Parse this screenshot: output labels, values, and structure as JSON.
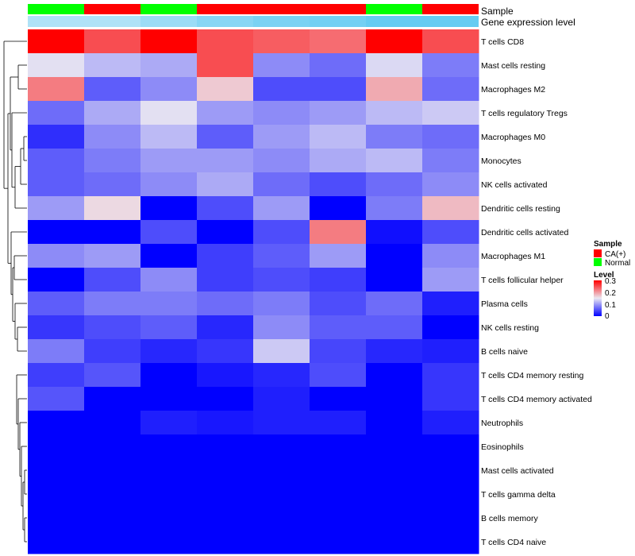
{
  "chart_data": {
    "type": "heatmap",
    "annotation_tracks": [
      {
        "name": "Sample",
        "values": [
          "Normal",
          "CA(+)",
          "Normal",
          "CA(+)",
          "CA(+)",
          "CA(+)",
          "Normal",
          "CA(+)"
        ]
      },
      {
        "name": "Gene expression level",
        "values": [
          0.45,
          0.45,
          0.6,
          0.75,
          0.85,
          0.9,
          1.0,
          1.0
        ]
      }
    ],
    "rows": [
      "T cells CD8",
      "Mast cells resting",
      "Macrophages M2",
      "T cells regulatory  Tregs",
      "Macrophages M0",
      "Monocytes",
      "NK cells activated",
      "Dendritic cells resting",
      "Dendritic cells activated",
      "Macrophages M1",
      "T cells follicular helper",
      "Plasma cells",
      "NK cells resting",
      "B cells naive",
      "T cells CD4 memory resting",
      "T cells CD4 memory activated",
      "Neutrophils",
      "Eosinophils",
      "Mast cells activated",
      "T cells gamma delta",
      "B cells memory",
      "T cells CD4 naive"
    ],
    "values": [
      [
        0.3,
        0.25,
        0.3,
        0.25,
        0.24,
        0.23,
        0.3,
        0.25
      ],
      [
        0.145,
        0.12,
        0.11,
        0.25,
        0.09,
        0.07,
        0.14,
        0.08
      ],
      [
        0.22,
        0.06,
        0.09,
        0.17,
        0.05,
        0.05,
        0.19,
        0.07
      ],
      [
        0.07,
        0.11,
        0.145,
        0.1,
        0.09,
        0.1,
        0.12,
        0.13
      ],
      [
        0.03,
        0.09,
        0.12,
        0.06,
        0.1,
        0.12,
        0.08,
        0.07
      ],
      [
        0.06,
        0.08,
        0.1,
        0.1,
        0.09,
        0.11,
        0.12,
        0.08
      ],
      [
        0.06,
        0.07,
        0.09,
        0.11,
        0.07,
        0.05,
        0.07,
        0.09
      ],
      [
        0.1,
        0.16,
        0.0,
        0.05,
        0.1,
        0.0,
        0.08,
        0.18
      ],
      [
        0.0,
        0.0,
        0.05,
        0.0,
        0.05,
        0.22,
        0.01,
        0.05
      ],
      [
        0.09,
        0.1,
        0.0,
        0.04,
        0.06,
        0.1,
        0.0,
        0.09
      ],
      [
        0.0,
        0.05,
        0.09,
        0.04,
        0.05,
        0.04,
        0.0,
        0.1
      ],
      [
        0.06,
        0.08,
        0.08,
        0.07,
        0.08,
        0.05,
        0.07,
        0.02
      ],
      [
        0.035,
        0.05,
        0.06,
        0.025,
        0.09,
        0.06,
        0.06,
        0.0
      ],
      [
        0.08,
        0.04,
        0.025,
        0.035,
        0.13,
        0.045,
        0.025,
        0.02
      ],
      [
        0.04,
        0.055,
        0.0,
        0.015,
        0.025,
        0.05,
        0.0,
        0.035
      ],
      [
        0.055,
        0.0,
        0.0,
        0.0,
        0.02,
        0.0,
        0.0,
        0.035
      ],
      [
        0.0,
        0.0,
        0.02,
        0.015,
        0.02,
        0.02,
        0.0,
        0.02
      ],
      [
        0.0,
        0.0,
        0.0,
        0.0,
        0.0,
        0.0,
        0.0,
        0.0
      ],
      [
        0.0,
        0.0,
        0.0,
        0.0,
        0.0,
        0.0,
        0.0,
        0.0
      ],
      [
        0.0,
        0.0,
        0.0,
        0.0,
        0.0,
        0.0,
        0.0,
        0.0
      ],
      [
        0.0,
        0.0,
        0.0,
        0.0,
        0.0,
        0.0,
        0.0,
        0.0
      ],
      [
        0.0,
        0.0,
        0.0,
        0.0,
        0.0,
        0.0,
        0.0,
        0.0
      ]
    ],
    "color_scale": {
      "low": "#0000ff",
      "mid": "#ebe8f2",
      "high": "#ff0000",
      "min": 0,
      "mid_value": 0.15,
      "max": 0.3
    },
    "sample_colors": {
      "CA(+)": "#ff0000",
      "Normal": "#00ff00"
    },
    "expression_colors": {
      "low": "#eaf4fb",
      "high": "#66ccf2"
    },
    "legend": {
      "sample_title": "Sample",
      "sample_entries": [
        "CA(+)",
        "Normal"
      ],
      "level_title": "Level",
      "level_ticks": [
        "0.3",
        "0.2",
        "0.1",
        "0"
      ]
    }
  }
}
